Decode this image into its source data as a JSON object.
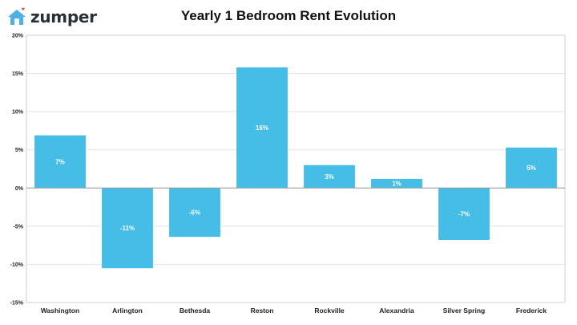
{
  "brand": {
    "name": "zumper",
    "icon": "house-heart-icon",
    "accent": "#4fb0e6",
    "heart": "#e8445a"
  },
  "chart_data": {
    "type": "bar",
    "title": "Yearly 1 Bedroom Rent Evolution",
    "categories": [
      "Washington",
      "Arlington",
      "Bethesda",
      "Reston",
      "Rockville",
      "Alexandria",
      "Silver Spring",
      "Frederick"
    ],
    "values": [
      6.9,
      -10.5,
      -6.4,
      15.8,
      3.0,
      1.2,
      -6.8,
      5.3
    ],
    "data_labels": [
      "7%",
      "-11%",
      "-6%",
      "16%",
      "3%",
      "1%",
      "-7%",
      "5%"
    ],
    "ylim": [
      -15,
      20
    ],
    "yticks": [
      -15,
      -10,
      -5,
      0,
      5,
      10,
      15,
      20
    ],
    "ytick_labels": [
      "-15%",
      "-10%",
      "-5%",
      "0%",
      "5%",
      "10%",
      "15%",
      "20%"
    ],
    "grid": true,
    "bar_color": "#45bde6",
    "xlabel": "",
    "ylabel": ""
  }
}
